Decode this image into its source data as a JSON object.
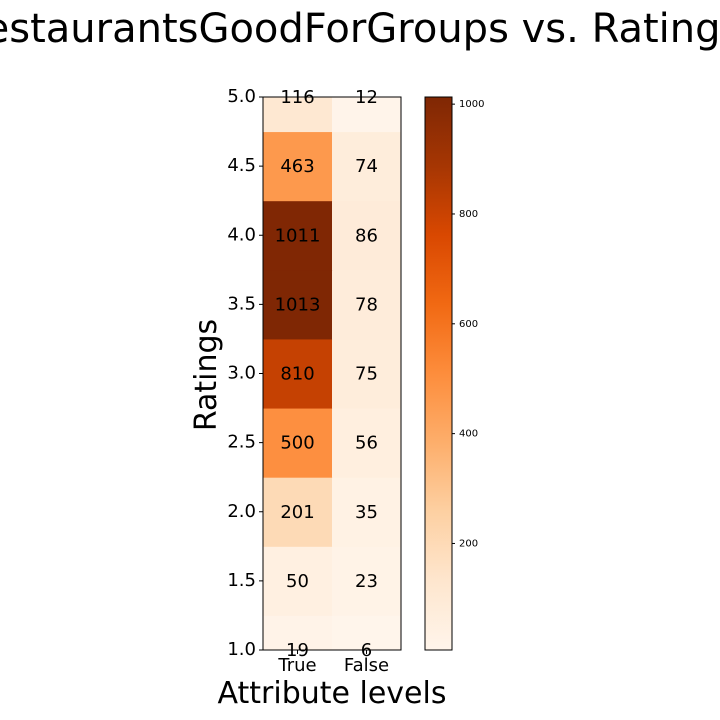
{
  "chart_data": {
    "type": "heatmap",
    "title": "RestaurantsGoodForGroups vs. Ratings",
    "xlabel": "Attribute levels",
    "ylabel": "Ratings",
    "x_categories": [
      "True",
      "False"
    ],
    "y_values": [
      1.0,
      1.5,
      2.0,
      2.5,
      3.0,
      3.5,
      4.0,
      4.5,
      5.0
    ],
    "y_tick_labels": [
      "1.0",
      "1.5",
      "2.0",
      "2.5",
      "3.0",
      "3.5",
      "4.0",
      "4.5",
      "5.0"
    ],
    "values": [
      [
        19,
        6
      ],
      [
        50,
        23
      ],
      [
        201,
        35
      ],
      [
        500,
        56
      ],
      [
        810,
        75
      ],
      [
        1013,
        78
      ],
      [
        1011,
        86
      ],
      [
        463,
        74
      ],
      [
        116,
        12
      ]
    ],
    "colormap": "Oranges",
    "colorbar": {
      "min": 6,
      "max": 1013,
      "ticks": [
        200,
        400,
        600,
        800,
        1000
      ],
      "tick_labels": [
        "200",
        "400",
        "600",
        "800",
        "1000"
      ]
    },
    "grid": false
  }
}
